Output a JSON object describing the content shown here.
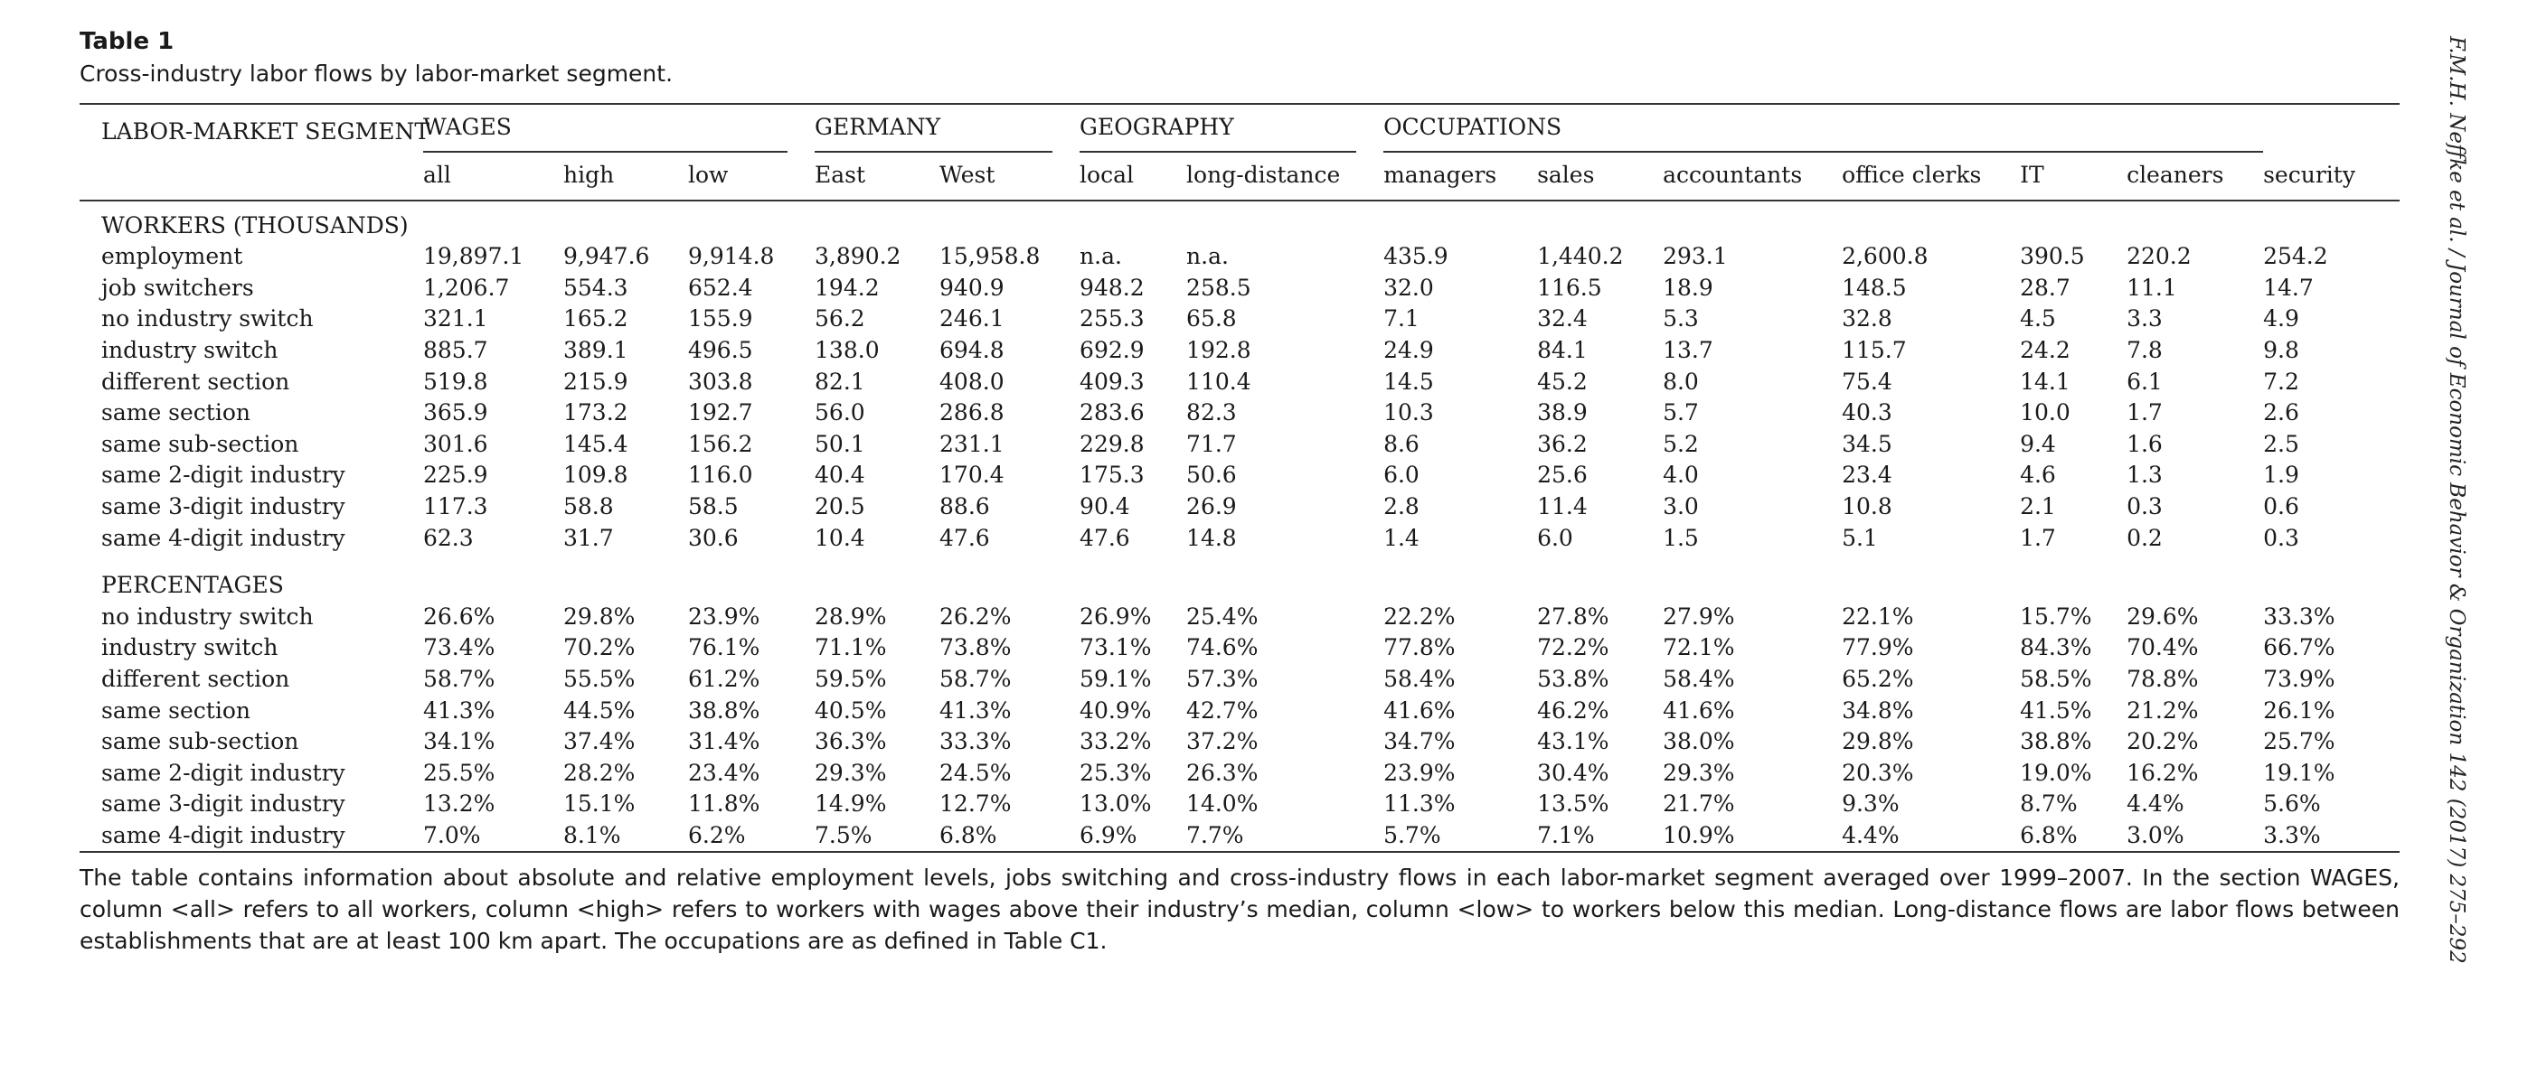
{
  "table_label": "Table 1",
  "caption": "Cross-industry labor flows by labor-market segment.",
  "header": {
    "row_header": "LABOR-MARKET SEGMENT",
    "groups": [
      "WAGES",
      "GERMANY",
      "GEOGRAPHY",
      "OCCUPATIONS"
    ],
    "columns": [
      "all",
      "high",
      "low",
      "East",
      "West",
      "local",
      "long-distance",
      "managers",
      "sales",
      "accountants",
      "office clerks",
      "IT",
      "cleaners",
      "security"
    ]
  },
  "section1": {
    "title": "WORKERS (THOUSANDS)",
    "rows": [
      {
        "label": "employment",
        "values": [
          "19,897.1",
          "9,947.6",
          "9,914.8",
          "3,890.2",
          "15,958.8",
          "n.a.",
          "n.a.",
          "435.9",
          "1,440.2",
          "293.1",
          "2,600.8",
          "390.5",
          "220.2",
          "254.2"
        ]
      },
      {
        "label": "job switchers",
        "values": [
          "1,206.7",
          "554.3",
          "652.4",
          "194.2",
          "940.9",
          "948.2",
          "258.5",
          "32.0",
          "116.5",
          "18.9",
          "148.5",
          "28.7",
          "11.1",
          "14.7"
        ]
      },
      {
        "label": "no industry switch",
        "values": [
          "321.1",
          "165.2",
          "155.9",
          "56.2",
          "246.1",
          "255.3",
          "65.8",
          "7.1",
          "32.4",
          "5.3",
          "32.8",
          "4.5",
          "3.3",
          "4.9"
        ]
      },
      {
        "label": "industry switch",
        "values": [
          "885.7",
          "389.1",
          "496.5",
          "138.0",
          "694.8",
          "692.9",
          "192.8",
          "24.9",
          "84.1",
          "13.7",
          "115.7",
          "24.2",
          "7.8",
          "9.8"
        ]
      },
      {
        "label": "different section",
        "values": [
          "519.8",
          "215.9",
          "303.8",
          "82.1",
          "408.0",
          "409.3",
          "110.4",
          "14.5",
          "45.2",
          "8.0",
          "75.4",
          "14.1",
          "6.1",
          "7.2"
        ]
      },
      {
        "label": "same section",
        "values": [
          "365.9",
          "173.2",
          "192.7",
          "56.0",
          "286.8",
          "283.6",
          "82.3",
          "10.3",
          "38.9",
          "5.7",
          "40.3",
          "10.0",
          "1.7",
          "2.6"
        ]
      },
      {
        "label": "same sub-section",
        "values": [
          "301.6",
          "145.4",
          "156.2",
          "50.1",
          "231.1",
          "229.8",
          "71.7",
          "8.6",
          "36.2",
          "5.2",
          "34.5",
          "9.4",
          "1.6",
          "2.5"
        ]
      },
      {
        "label": "same 2-digit industry",
        "values": [
          "225.9",
          "109.8",
          "116.0",
          "40.4",
          "170.4",
          "175.3",
          "50.6",
          "6.0",
          "25.6",
          "4.0",
          "23.4",
          "4.6",
          "1.3",
          "1.9"
        ]
      },
      {
        "label": "same 3-digit industry",
        "values": [
          "117.3",
          "58.8",
          "58.5",
          "20.5",
          "88.6",
          "90.4",
          "26.9",
          "2.8",
          "11.4",
          "3.0",
          "10.8",
          "2.1",
          "0.3",
          "0.6"
        ]
      },
      {
        "label": "same 4-digit industry",
        "values": [
          "62.3",
          "31.7",
          "30.6",
          "10.4",
          "47.6",
          "47.6",
          "14.8",
          "1.4",
          "6.0",
          "1.5",
          "5.1",
          "1.7",
          "0.2",
          "0.3"
        ]
      }
    ]
  },
  "section2": {
    "title": "PERCENTAGES",
    "rows": [
      {
        "label": "no industry switch",
        "values": [
          "26.6%",
          "29.8%",
          "23.9%",
          "28.9%",
          "26.2%",
          "26.9%",
          "25.4%",
          "22.2%",
          "27.8%",
          "27.9%",
          "22.1%",
          "15.7%",
          "29.6%",
          "33.3%"
        ]
      },
      {
        "label": "industry switch",
        "values": [
          "73.4%",
          "70.2%",
          "76.1%",
          "71.1%",
          "73.8%",
          "73.1%",
          "74.6%",
          "77.8%",
          "72.2%",
          "72.1%",
          "77.9%",
          "84.3%",
          "70.4%",
          "66.7%"
        ]
      },
      {
        "label": "different section",
        "values": [
          "58.7%",
          "55.5%",
          "61.2%",
          "59.5%",
          "58.7%",
          "59.1%",
          "57.3%",
          "58.4%",
          "53.8%",
          "58.4%",
          "65.2%",
          "58.5%",
          "78.8%",
          "73.9%"
        ]
      },
      {
        "label": "same section",
        "values": [
          "41.3%",
          "44.5%",
          "38.8%",
          "40.5%",
          "41.3%",
          "40.9%",
          "42.7%",
          "41.6%",
          "46.2%",
          "41.6%",
          "34.8%",
          "41.5%",
          "21.2%",
          "26.1%"
        ]
      },
      {
        "label": "same sub-section",
        "values": [
          "34.1%",
          "37.4%",
          "31.4%",
          "36.3%",
          "33.3%",
          "33.2%",
          "37.2%",
          "34.7%",
          "43.1%",
          "38.0%",
          "29.8%",
          "38.8%",
          "20.2%",
          "25.7%"
        ]
      },
      {
        "label": "same 2-digit industry",
        "values": [
          "25.5%",
          "28.2%",
          "23.4%",
          "29.3%",
          "24.5%",
          "25.3%",
          "26.3%",
          "23.9%",
          "30.4%",
          "29.3%",
          "20.3%",
          "19.0%",
          "16.2%",
          "19.1%"
        ]
      },
      {
        "label": "same 3-digit industry",
        "values": [
          "13.2%",
          "15.1%",
          "11.8%",
          "14.9%",
          "12.7%",
          "13.0%",
          "14.0%",
          "11.3%",
          "13.5%",
          "21.7%",
          "9.3%",
          "8.7%",
          "4.4%",
          "5.6%"
        ]
      },
      {
        "label": "same 4-digit industry",
        "values": [
          "7.0%",
          "8.1%",
          "6.2%",
          "7.5%",
          "6.8%",
          "6.9%",
          "7.7%",
          "5.7%",
          "7.1%",
          "10.9%",
          "4.4%",
          "6.8%",
          "3.0%",
          "3.3%"
        ]
      }
    ]
  },
  "note": "The table contains information about absolute and relative employment levels, jobs switching and cross-industry flows in each labor-market segment averaged over 1999–2007. In the section WAGES, column <all> refers to all workers, column <high> refers to workers with wages above their industry’s median, column <low> to workers below this median. Long-distance flows are labor flows between establishments that are at least 100 km apart. The occupations are as defined in Table C1.",
  "side_citation": "F.M.H. Neffke et al. / Journal of Economic Behavior & Organization 142 (2017) 275–292"
}
